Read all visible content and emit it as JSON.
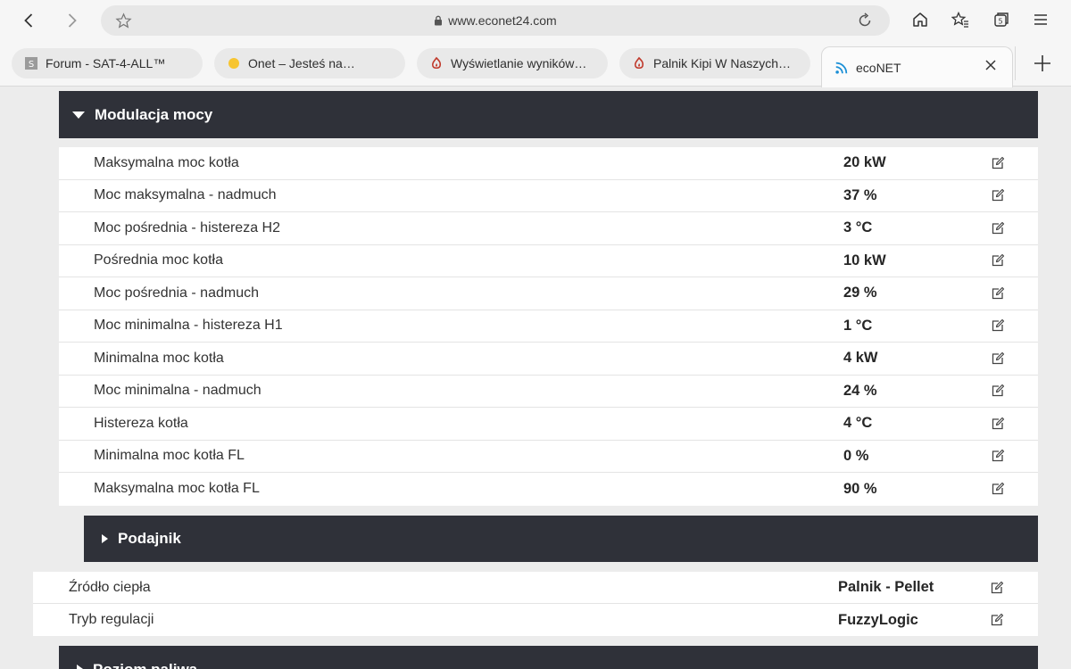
{
  "browser": {
    "url": "www.econet24.com",
    "tabs": [
      {
        "title": "Forum - SAT-4-ALL™",
        "favicon": "sat4all-icon"
      },
      {
        "title": "Onet – Jesteś na…",
        "favicon": "onet-dot-icon"
      },
      {
        "title": "Wyświetlanie wyników…",
        "favicon": "forum-flame-icon"
      },
      {
        "title": "Palnik Kipi W Naszych…",
        "favicon": "forum-flame-icon"
      },
      {
        "title": "ecoNET",
        "favicon": "econet-wifi-icon",
        "active": true
      }
    ]
  },
  "modulation": {
    "title": "Modulacja mocy",
    "params": [
      {
        "label": "Maksymalna moc kotła",
        "value": "20 kW"
      },
      {
        "label": "Moc maksymalna - nadmuch",
        "value": "37 %"
      },
      {
        "label": "Moc pośrednia - histereza H2",
        "value": "3 °C"
      },
      {
        "label": "Pośrednia moc kotła",
        "value": "10 kW"
      },
      {
        "label": "Moc pośrednia - nadmuch",
        "value": "29 %"
      },
      {
        "label": "Moc minimalna - histereza H1",
        "value": "1 °C"
      },
      {
        "label": "Minimalna moc kotła",
        "value": "4 kW"
      },
      {
        "label": "Moc minimalna - nadmuch",
        "value": "24 %"
      },
      {
        "label": "Histereza kotła",
        "value": "4 °C"
      },
      {
        "label": "Minimalna moc kotła FL",
        "value": "0 %"
      },
      {
        "label": "Maksymalna moc kotła FL",
        "value": "90 %"
      }
    ]
  },
  "feeder": {
    "title": "Podajnik"
  },
  "general": {
    "params": [
      {
        "label": "Źródło ciepła",
        "value": "Palnik - Pellet"
      },
      {
        "label": "Tryb regulacji",
        "value": "FuzzyLogic"
      }
    ]
  },
  "fuel_level": {
    "title": "Poziom paliwa"
  },
  "colors": {
    "header_bg": "#2f3139",
    "row_bg": "#ffffff",
    "page_bg": "#ececec"
  }
}
